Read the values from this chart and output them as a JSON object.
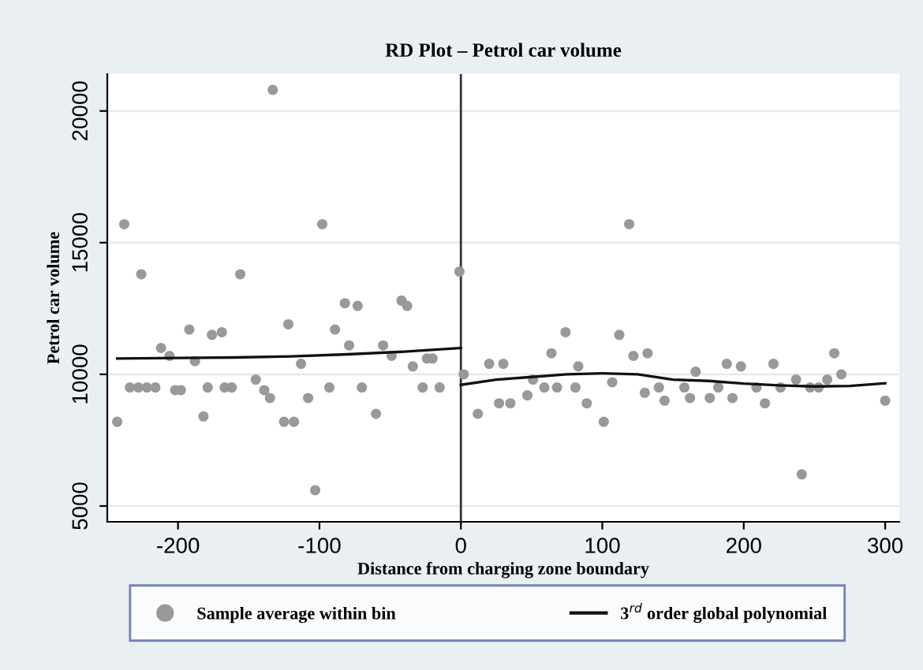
{
  "chart_data": {
    "type": "scatter",
    "title": "RD Plot – Petrol car volume",
    "xlabel": "Distance from charging zone boundary",
    "ylabel": "Petrol car volume",
    "xlim": [
      -250,
      310
    ],
    "ylim": [
      4400,
      21400
    ],
    "xticks": [
      -200,
      -100,
      0,
      100,
      200,
      300
    ],
    "yticks": [
      5000,
      10000,
      15000,
      20000
    ],
    "grid": "y",
    "legend": "bottom",
    "marker": "circle",
    "ref_lines": [
      {
        "axis": "x",
        "value": 0,
        "color": "#333333"
      }
    ],
    "series": [
      {
        "name": "Sample average within bin",
        "color": "#999999",
        "x": [
          -243,
          -238,
          -234,
          -228,
          -222,
          -216,
          -226,
          -212,
          -206,
          -202,
          -198,
          -192,
          -188,
          -182,
          -179,
          -176,
          -169,
          -167,
          -162,
          -156,
          -145,
          -139,
          -135,
          -133,
          -125,
          -122,
          -118,
          -113,
          -108,
          -103,
          -98,
          -93,
          -89,
          -82,
          -79,
          -73,
          -70,
          -60,
          -55,
          -49,
          -42,
          -38,
          -34,
          -27,
          -24,
          -20,
          -15,
          -1,
          2,
          12,
          20,
          27,
          30,
          35,
          47,
          51,
          59,
          64,
          68,
          74,
          81,
          83,
          89,
          101,
          107,
          112,
          119,
          122,
          130,
          132,
          140,
          144,
          158,
          162,
          166,
          176,
          182,
          188,
          192,
          198,
          209,
          215,
          221,
          226,
          237,
          241,
          247,
          253,
          259,
          264,
          269,
          300
        ],
        "values": [
          8200,
          15700,
          9500,
          9500,
          9500,
          9500,
          13800,
          11000,
          10700,
          9400,
          9400,
          11700,
          10500,
          8400,
          9500,
          11500,
          11600,
          9500,
          9500,
          13800,
          9800,
          9400,
          9100,
          20800,
          8200,
          11900,
          8200,
          10400,
          9100,
          5600,
          15700,
          9500,
          11700,
          12700,
          11100,
          12600,
          9500,
          8500,
          11100,
          10700,
          12800,
          12600,
          10300,
          9500,
          10600,
          10600,
          9500,
          13900,
          10000,
          8500,
          10400,
          8900,
          10400,
          8900,
          9200,
          9800,
          9500,
          10800,
          9500,
          11600,
          9500,
          10300,
          8900,
          8200,
          9700,
          11500,
          15700,
          10700,
          9300,
          10800,
          9500,
          9000,
          9500,
          9100,
          10100,
          9100,
          9500,
          10400,
          9100,
          10300,
          9500,
          8900,
          10400,
          9500,
          9800,
          6200,
          9500,
          9500,
          9800,
          10800,
          10000,
          9000
        ]
      },
      {
        "name": "3$^{rd}$ order global polynomial",
        "type": "line",
        "color": "#111111",
        "marker": "none",
        "line_style": "solid",
        "x": [
          -243,
          -200,
          -160,
          -120,
          -80,
          -40,
          0
        ],
        "values": [
          10600,
          10620,
          10640,
          10680,
          10760,
          10860,
          11000
        ]
      },
      {
        "type": "line",
        "color": "#111111",
        "marker": "none",
        "line_style": "solid",
        "x": [
          0,
          25,
          50,
          75,
          100,
          125,
          150,
          175,
          200,
          225,
          250,
          275,
          300
        ],
        "values": [
          9600,
          9800,
          9900,
          10000,
          10040,
          10000,
          9800,
          9750,
          9650,
          9580,
          9540,
          9560,
          9660
        ]
      }
    ]
  }
}
